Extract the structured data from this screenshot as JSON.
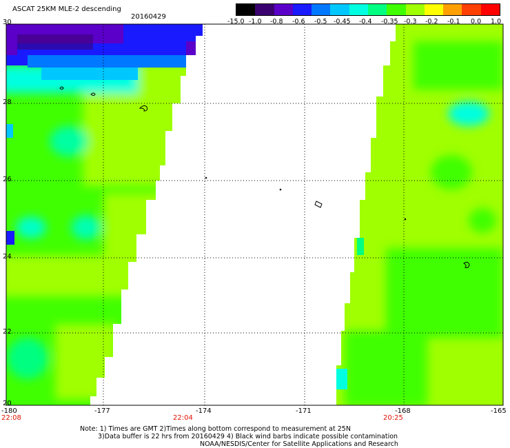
{
  "header": {
    "title": "ASCAT 25KM MLE-2 descending",
    "date": "20160429"
  },
  "colorbar": {
    "labels": [
      "-15.0",
      "-1.0",
      "-0.8",
      "-0.6",
      "-0.5",
      "-0.45",
      "-0.4",
      "-0.35",
      "-0.3",
      "-0.2",
      "-0.1",
      "0.0",
      "1.0"
    ],
    "colors": [
      "#000000",
      "#3a0070",
      "#5a00c8",
      "#1a1aff",
      "#0078ff",
      "#00c8ff",
      "#00ffe0",
      "#00ff80",
      "#40ff00",
      "#a0ff00",
      "#ffff00",
      "#ffa000",
      "#ff4000",
      "#ff0000"
    ]
  },
  "axes": {
    "lat_labels": [
      "30",
      "28",
      "26",
      "24",
      "22",
      "20"
    ],
    "lon_labels": [
      "-180",
      "-177",
      "-174",
      "-171",
      "-168",
      "-165"
    ],
    "time_labels": [
      "22:08",
      "22:04",
      "20:25"
    ]
  },
  "colors": {
    "accent": "#e01000",
    "swath_green": "#40ff00",
    "swath_yellowgreen": "#a0ff00",
    "swath_cyan": "#00ffe0",
    "swath_blue": "#1a1aff"
  },
  "notes": {
    "line1": "Note: 1) Times are GMT 2)Times along bottom correspond to measurement at 25N",
    "line2": "3)Data buffer is 22 hrs from 20160429 4) Black wind barbs indicate possible contamination",
    "line3": "NOAA/NESDIS/Center for Satellite Applications and Research"
  }
}
